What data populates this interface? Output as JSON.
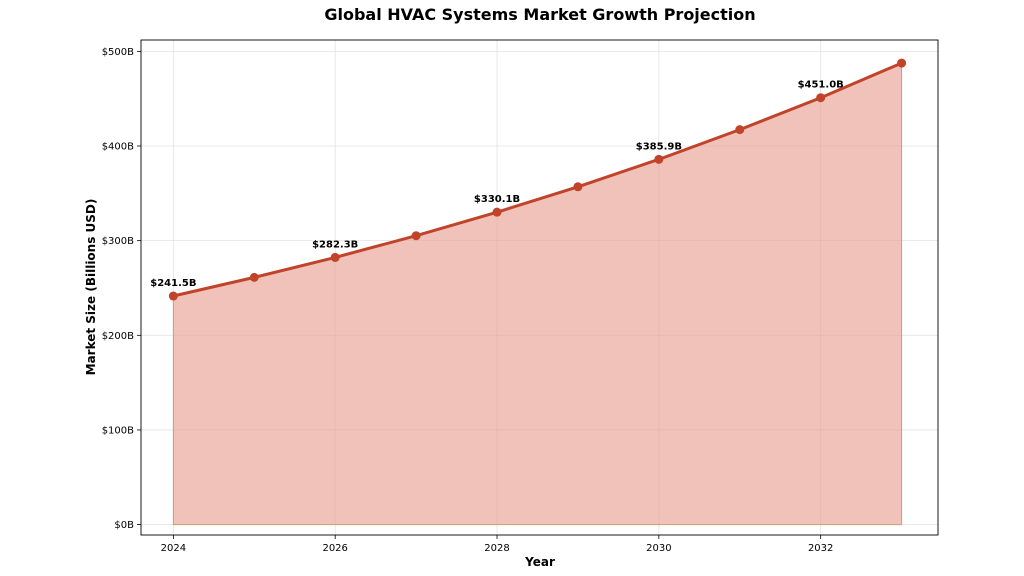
{
  "chart_data": {
    "type": "area",
    "title": "Global HVAC Systems Market Growth Projection",
    "xlabel": "Year",
    "ylabel": "Market Size (Billions USD)",
    "x": [
      2024,
      2025,
      2026,
      2027,
      2028,
      2029,
      2030,
      2031,
      2032,
      2033
    ],
    "values": [
      241.5,
      261.2,
      282.3,
      305.2,
      330.1,
      356.9,
      385.9,
      417.3,
      451.0,
      487.6
    ],
    "xlim": [
      2023.6,
      2033.45
    ],
    "ylim": [
      -11,
      512
    ],
    "x_ticks": [
      2024,
      2026,
      2028,
      2030,
      2032
    ],
    "y_ticks": [
      0,
      100,
      200,
      300,
      400,
      500
    ],
    "y_tick_labels": [
      "$0B",
      "$100B",
      "$200B",
      "$300B",
      "$400B",
      "$500B"
    ],
    "data_labels": [
      {
        "x": 2024,
        "y": 241.5,
        "text": "$241.5B"
      },
      {
        "x": 2026,
        "y": 282.3,
        "text": "$282.3B"
      },
      {
        "x": 2028,
        "y": 330.1,
        "text": "$330.1B"
      },
      {
        "x": 2030,
        "y": 385.9,
        "text": "$385.9B"
      },
      {
        "x": 2032,
        "y": 451.0,
        "text": "$451.0B"
      }
    ],
    "grid": true,
    "colors": {
      "line": "#c0432a",
      "fill": "#e69a8a",
      "fill_opacity": "0.6",
      "fill_edge": "#c8a07a"
    }
  }
}
